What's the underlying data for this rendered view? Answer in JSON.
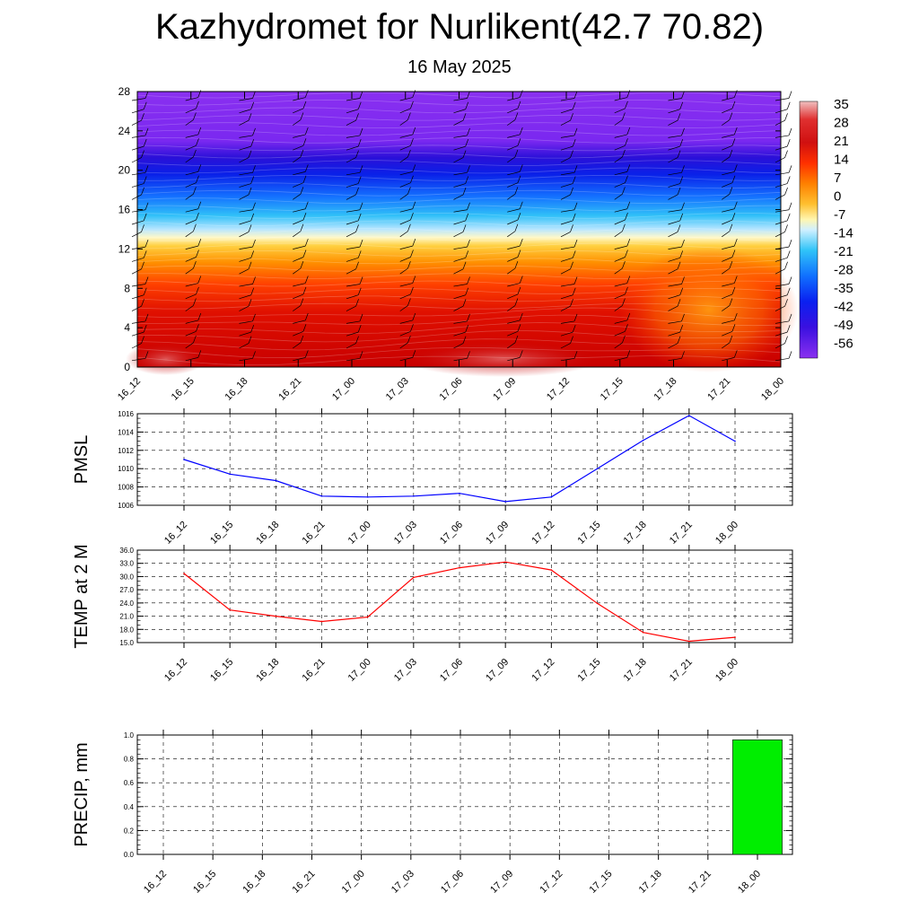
{
  "title": "Kazhydromet for Nurlikent(42.7 70.82)",
  "subtitle": "16 May 2025",
  "times": [
    "16_12",
    "16_15",
    "16_18",
    "16_21",
    "17_00",
    "17_03",
    "17_06",
    "17_09",
    "17_12",
    "17_15",
    "17_18",
    "17_21",
    "18_00"
  ],
  "chart_data": [
    {
      "type": "heatmap",
      "name": "temperature-cross-section",
      "x": [
        "16_12",
        "16_15",
        "16_18",
        "16_21",
        "17_00",
        "17_03",
        "17_06",
        "17_09",
        "17_12",
        "17_15",
        "17_18",
        "17_21",
        "18_00"
      ],
      "ylim": [
        0,
        28
      ],
      "yticks": [
        "0",
        "4",
        "8",
        "12",
        "16",
        "20",
        "24",
        "28"
      ],
      "colorbar_labels": [
        "35",
        "28",
        "21",
        "14",
        "7",
        "0",
        "-7",
        "-14",
        "-21",
        "-28",
        "-35",
        "-42",
        "-49",
        "-56"
      ],
      "colorbar_colors": [
        "#e8a0a0",
        "#d81818",
        "#ff2a00",
        "#ff8c00",
        "#ffcc33",
        "#fff8c0",
        "#c8ecff",
        "#33c8f8",
        "#1488ff",
        "#1030ff",
        "#2a0ad0",
        "#8a30f0"
      ],
      "wind_barbs": true
    },
    {
      "type": "line",
      "ylabel": "PMSL",
      "x": [
        "16_12",
        "16_15",
        "16_18",
        "16_21",
        "17_00",
        "17_03",
        "17_06",
        "17_09",
        "17_12",
        "17_15",
        "17_18",
        "17_21",
        "18_00"
      ],
      "values": [
        1011.0,
        1009.4,
        1008.7,
        1007.0,
        1006.9,
        1007.0,
        1007.3,
        1006.4,
        1006.9,
        1010.0,
        1013.1,
        1015.8,
        1013.0
      ],
      "ylim": [
        1006,
        1016
      ],
      "yticks": [
        "1006",
        "1008",
        "1010",
        "1012",
        "1014",
        "1016"
      ],
      "color": "#0000ff",
      "grid": true
    },
    {
      "type": "line",
      "ylabel": "TEMP at 2 M",
      "x": [
        "16_12",
        "16_15",
        "16_18",
        "16_21",
        "17_00",
        "17_03",
        "17_06",
        "17_09",
        "17_12",
        "17_15",
        "17_18",
        "17_21",
        "18_00"
      ],
      "values": [
        30.7,
        22.4,
        21.0,
        19.8,
        20.8,
        29.8,
        32.0,
        33.3,
        31.5,
        23.9,
        17.3,
        15.3,
        16.2
      ],
      "ylim": [
        15,
        36
      ],
      "yticks": [
        "15.0",
        "18.0",
        "21.0",
        "24.0",
        "27.0",
        "30.0",
        "33.0",
        "36.0"
      ],
      "color": "#ff0000",
      "grid": true
    },
    {
      "type": "bar",
      "ylabel": "PRECIP, mm",
      "x": [
        "16_12",
        "16_15",
        "16_18",
        "16_21",
        "17_00",
        "17_03",
        "17_06",
        "17_09",
        "17_12",
        "17_15",
        "17_18",
        "17_21",
        "18_00"
      ],
      "values": [
        0,
        0,
        0,
        0,
        0,
        0,
        0,
        0,
        0,
        0,
        0,
        0,
        0.96
      ],
      "ylim": [
        0,
        1.0
      ],
      "yticks": [
        "0.0",
        "0.2",
        "0.4",
        "0.6",
        "0.8",
        "1.0"
      ],
      "color": "#00ee00",
      "grid": true
    }
  ]
}
